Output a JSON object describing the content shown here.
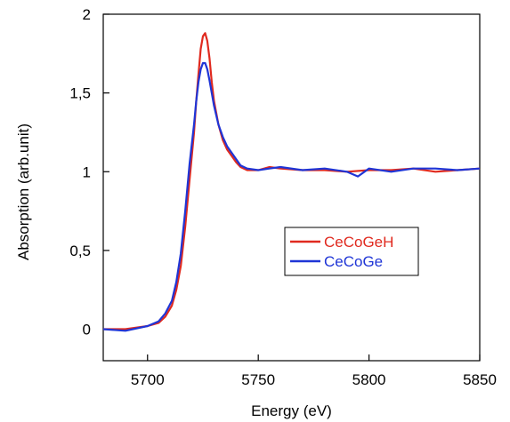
{
  "chart_data": {
    "type": "line",
    "xlabel": "Energy (eV)",
    "ylabel": "Absorption (arb.unit)",
    "xlim": [
      5680,
      5850
    ],
    "ylim": [
      -0.2,
      2
    ],
    "x_ticks": [
      5700,
      5750,
      5800,
      5850
    ],
    "x_tick_labels": [
      "5700",
      "5750",
      "5800",
      "5850"
    ],
    "y_ticks": [
      0,
      0.5,
      1,
      1.5,
      2
    ],
    "y_tick_labels": [
      "0",
      "0,5",
      "1",
      "1,5",
      "2"
    ],
    "grid": false,
    "legend_position": "center-right",
    "series": [
      {
        "name": "CeCoGeH",
        "color": "#e02a1f",
        "x": [
          5680,
          5690,
          5700,
          5705,
          5708,
          5711,
          5713,
          5715,
          5717,
          5719,
          5721,
          5722,
          5723,
          5724,
          5725,
          5726,
          5727,
          5728,
          5729,
          5730,
          5732,
          5734,
          5736,
          5738,
          5740,
          5742,
          5745,
          5750,
          5755,
          5760,
          5770,
          5780,
          5790,
          5800,
          5810,
          5820,
          5830,
          5840,
          5850
        ],
        "y": [
          0.0,
          0.0,
          0.02,
          0.04,
          0.08,
          0.15,
          0.25,
          0.4,
          0.65,
          0.95,
          1.25,
          1.45,
          1.62,
          1.78,
          1.86,
          1.88,
          1.83,
          1.72,
          1.57,
          1.45,
          1.3,
          1.2,
          1.14,
          1.1,
          1.06,
          1.03,
          1.01,
          1.01,
          1.03,
          1.02,
          1.01,
          1.01,
          1.0,
          1.01,
          1.01,
          1.02,
          1.0,
          1.01,
          1.02
        ]
      },
      {
        "name": "CeCoGe",
        "color": "#1f35d6",
        "x": [
          5680,
          5690,
          5700,
          5705,
          5708,
          5711,
          5713,
          5715,
          5717,
          5719,
          5721,
          5722,
          5723,
          5724,
          5725,
          5726,
          5727,
          5728,
          5729,
          5730,
          5732,
          5734,
          5736,
          5738,
          5740,
          5742,
          5745,
          5750,
          5755,
          5760,
          5770,
          5780,
          5790,
          5795,
          5800,
          5810,
          5820,
          5830,
          5840,
          5850
        ],
        "y": [
          0.0,
          -0.01,
          0.02,
          0.05,
          0.1,
          0.18,
          0.3,
          0.48,
          0.75,
          1.05,
          1.3,
          1.45,
          1.57,
          1.65,
          1.69,
          1.69,
          1.65,
          1.58,
          1.5,
          1.42,
          1.3,
          1.22,
          1.16,
          1.12,
          1.08,
          1.04,
          1.02,
          1.01,
          1.02,
          1.03,
          1.01,
          1.02,
          1.0,
          0.97,
          1.02,
          1.0,
          1.02,
          1.02,
          1.01,
          1.02
        ]
      }
    ]
  }
}
